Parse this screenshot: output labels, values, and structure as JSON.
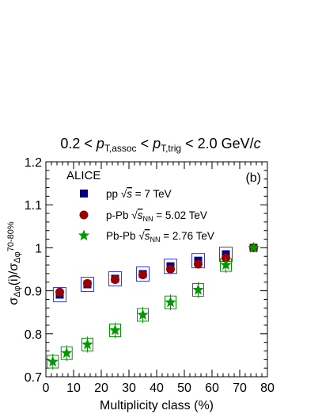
{
  "chart_data": {
    "type": "scatter",
    "title": {
      "parts": [
        {
          "text": "0.2 < ",
          "style": "normal"
        },
        {
          "text": "p",
          "style": "italic"
        },
        {
          "text": "T,assoc",
          "style": "sub"
        },
        {
          "text": " < ",
          "style": "normal"
        },
        {
          "text": "p",
          "style": "italic"
        },
        {
          "text": "T,trig",
          "style": "sub"
        },
        {
          "text": " < 2.0 GeV/",
          "style": "normal"
        },
        {
          "text": "c",
          "style": "italic"
        }
      ]
    },
    "xlabel": "Multiplicity class (%)",
    "ylabel": {
      "parts": [
        {
          "text": "σ",
          "style": "normal"
        },
        {
          "text": "Δφ",
          "style": "sub"
        },
        {
          "text": "(i)/σ",
          "style": "normal"
        },
        {
          "text": "Δφ",
          "style": "sub"
        },
        {
          "text": "70-80%",
          "style": "sup"
        }
      ]
    },
    "xlim": [
      0,
      80
    ],
    "ylim": [
      0.7,
      1.2
    ],
    "x_ticks": [
      0,
      10,
      20,
      30,
      40,
      50,
      60,
      70,
      80
    ],
    "y_ticks": [
      0.7,
      0.8,
      0.9,
      1,
      1.1,
      1.2
    ],
    "x_tick_labels": [
      "0",
      "10",
      "20",
      "30",
      "40",
      "50",
      "60",
      "70",
      "80"
    ],
    "y_tick_labels": [
      "0.7",
      "0.8",
      "0.9",
      "1",
      "1.1",
      "1.2"
    ],
    "experiment_label": "ALICE",
    "panel_label": "(b)",
    "legend_position": "top-left",
    "grid": false,
    "series": [
      {
        "name": {
          "parts": [
            {
              "text": "pp ",
              "style": "normal"
            },
            {
              "text": "√",
              "style": "normal"
            },
            {
              "text": "s",
              "style": "italic-over"
            },
            {
              "text": " = 7 TeV",
              "style": "normal"
            }
          ]
        },
        "marker": "square",
        "color": "#00008b",
        "syst_color": "#2e3fdc",
        "x": [
          5,
          15,
          25,
          35,
          45,
          55,
          65,
          75
        ],
        "y": [
          0.891,
          0.915,
          0.928,
          0.939,
          0.957,
          0.97,
          0.985,
          1.0
        ]
      },
      {
        "name": {
          "parts": [
            {
              "text": "p-Pb ",
              "style": "normal"
            },
            {
              "text": "√",
              "style": "normal"
            },
            {
              "text": "s",
              "style": "italic-over"
            },
            {
              "text": "NN",
              "style": "sub"
            },
            {
              "text": " = 5.02 TeV",
              "style": "normal"
            }
          ]
        },
        "marker": "circle",
        "color": "#990000",
        "syst_color": "#990000",
        "x": [
          5,
          15,
          25,
          35,
          45,
          55,
          65,
          75
        ],
        "y": [
          0.897,
          0.917,
          0.926,
          0.937,
          0.95,
          0.962,
          0.976,
          1.0
        ]
      },
      {
        "name": {
          "parts": [
            {
              "text": "Pb-Pb ",
              "style": "normal"
            },
            {
              "text": "√",
              "style": "normal"
            },
            {
              "text": "s",
              "style": "italic-over"
            },
            {
              "text": "NN",
              "style": "sub"
            },
            {
              "text": " = 2.76 TeV",
              "style": "normal"
            }
          ]
        },
        "marker": "star",
        "color": "#009900",
        "syst_color": "#009900",
        "x": [
          2.5,
          7.5,
          15,
          25,
          35,
          45,
          55,
          65,
          75
        ],
        "y": [
          0.735,
          0.755,
          0.775,
          0.808,
          0.844,
          0.873,
          0.902,
          0.96,
          1.0
        ]
      }
    ]
  }
}
